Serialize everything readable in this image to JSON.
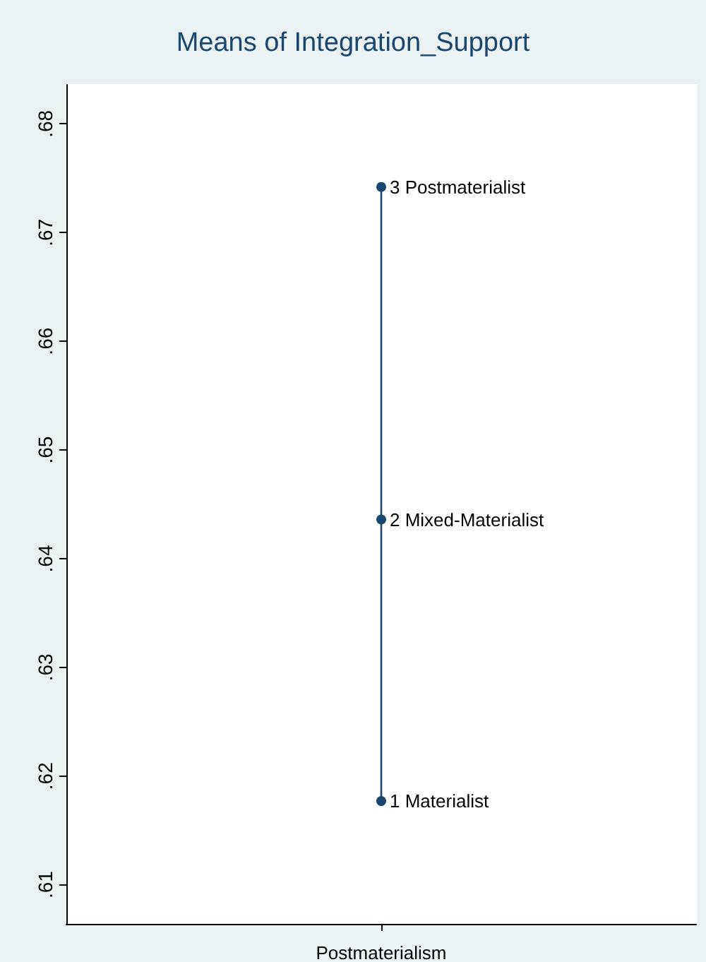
{
  "chart_data": {
    "type": "line",
    "title": "Means of Integration_Support",
    "categories": [
      "Postmaterialism"
    ],
    "series": [
      {
        "color": "#1a476f",
        "x": [
          "Postmaterialism",
          "Postmaterialism",
          "Postmaterialism"
        ],
        "values": [
          0.6177,
          0.6436,
          0.6742
        ]
      }
    ],
    "annotations": [
      {
        "text": "1 Materialist",
        "x": "Postmaterialism",
        "y": 0.6177
      },
      {
        "text": "2 Mixed-Materialist",
        "x": "Postmaterialism",
        "y": 0.6436
      },
      {
        "text": "3 Postmaterialist",
        "x": "Postmaterialism",
        "y": 0.6742
      }
    ],
    "ylim": [
      0.6064,
      0.6836
    ],
    "yticks": [
      {
        "value": 0.61,
        "label": ".61"
      },
      {
        "value": 0.62,
        "label": ".62"
      },
      {
        "value": 0.63,
        "label": ".63"
      },
      {
        "value": 0.64,
        "label": ".64"
      },
      {
        "value": 0.65,
        "label": ".65"
      },
      {
        "value": 0.66,
        "label": ".66"
      },
      {
        "value": 0.67,
        "label": ".67"
      },
      {
        "value": 0.68,
        "label": ".68"
      }
    ],
    "grid": false,
    "marker": "circle",
    "line_style": "solid"
  }
}
